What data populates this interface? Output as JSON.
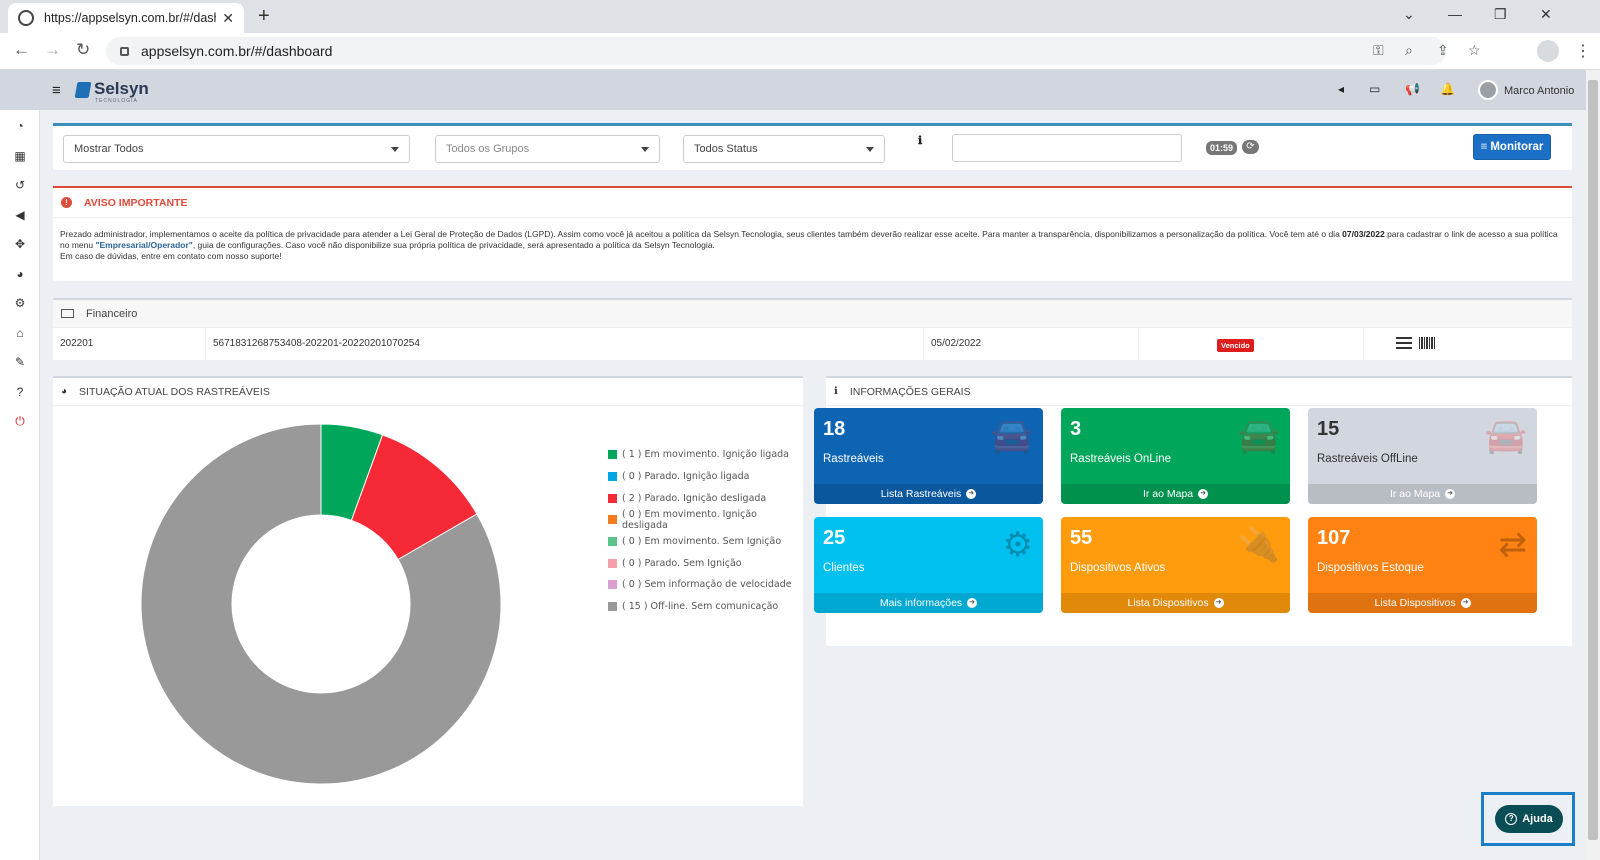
{
  "browser": {
    "tab_title": "https://appselsyn.com.br/#/dashb",
    "url": "appselsyn.com.br/#/dashboard"
  },
  "header": {
    "logo_text": "Selsyn",
    "logo_sub": "TECNOLOGIA",
    "user_name": "Marco Antonio"
  },
  "filters": {
    "select1": "Mostrar Todos",
    "select2": "Todos os Grupos",
    "select3": "Todos Status",
    "timer": "01:59",
    "monitor_label": "Monitorar"
  },
  "alert": {
    "title": "AVISO IMPORTANTE",
    "body_part1": "Prezado administrador, implementamos o aceite da política de privacidade para atender a Lei Geral de Proteção de Dados (LGPD). Assim como você já aceitou a política da Selsyn Tecnologia, seus clientes também deverão realizar esse aceite. Para manter a transparência, disponibilizamos a personalização da política. Você tem até o dia ",
    "deadline": "07/03/2022",
    "body_part2": " para cadastrar o link de acesso a sua política no menu ",
    "menu_link": "\"Empresarial/Operador\"",
    "body_part3": ", guia de configurações. Caso você não disponibilize sua própria política de privacidade, será apresentado a política da Selsyn Tecnologia.",
    "body_line2": "Em caso de dúvidas, entre em contato com nosso suporte!"
  },
  "financeiro": {
    "title": "Financeiro",
    "row": {
      "ref": "202201",
      "code": "5671831268753408-202201-20220201070254",
      "date": "05/02/2022",
      "status": "Vencido"
    }
  },
  "chart_panel": {
    "title": "SITUAÇÃO ATUAL DOS RASTREÁVEIS"
  },
  "chart_data": {
    "type": "pie",
    "series": [
      {
        "name": "( 1 ) Em movimento. Ignição ligada",
        "value": 1,
        "color": "#00a65a"
      },
      {
        "name": "( 0 ) Parado. Ignição ligada",
        "value": 0,
        "color": "#00a7e6"
      },
      {
        "name": "( 2 ) Parado. Ignição desligada",
        "value": 2,
        "color": "#f52a36"
      },
      {
        "name": "( 0 ) Em movimento. Ignição desligada",
        "value": 0,
        "color": "#f47b20"
      },
      {
        "name": "( 0 ) Em movimento. Sem Ignição",
        "value": 0,
        "color": "#5bc48b"
      },
      {
        "name": "( 0 ) Parado. Sem Ignição",
        "value": 0,
        "color": "#f59fa8"
      },
      {
        "name": "( 0 ) Sem informação de velocidade",
        "value": 0,
        "color": "#d9a0d0"
      },
      {
        "name": "( 15 ) Off-line. Sem comunicação",
        "value": 15,
        "color": "#999999"
      }
    ]
  },
  "info_panel": {
    "title": "INFORMAÇÕES GERAIS",
    "cards": [
      {
        "number": "18",
        "label": "Rastreáveis",
        "link": "Lista Rastreáveis",
        "color": "#0d64b3",
        "icon": "car-icon"
      },
      {
        "number": "3",
        "label": "Rastreáveis OnLine",
        "link": "Ir ao Mapa",
        "color": "#00a65a",
        "icon": "car-icon"
      },
      {
        "number": "15",
        "label": "Rastreáveis OffLine",
        "link": "Ir ao Mapa",
        "color": "#d2d6de",
        "icon": "car-icon"
      },
      {
        "number": "25",
        "label": "Clientes",
        "link": "Mais informações",
        "color": "#00c0ef",
        "icon": "gears-icon"
      },
      {
        "number": "55",
        "label": "Dispositivos Ativos",
        "link": "Lista Dispositivos",
        "color": "#ff9c0d",
        "icon": "plug-icon"
      },
      {
        "number": "107",
        "label": "Dispositivos Estoque",
        "link": "Lista Dispositivos",
        "color": "#ff8212",
        "icon": "retweet-icon"
      }
    ]
  },
  "help": {
    "label": "Ajuda"
  }
}
